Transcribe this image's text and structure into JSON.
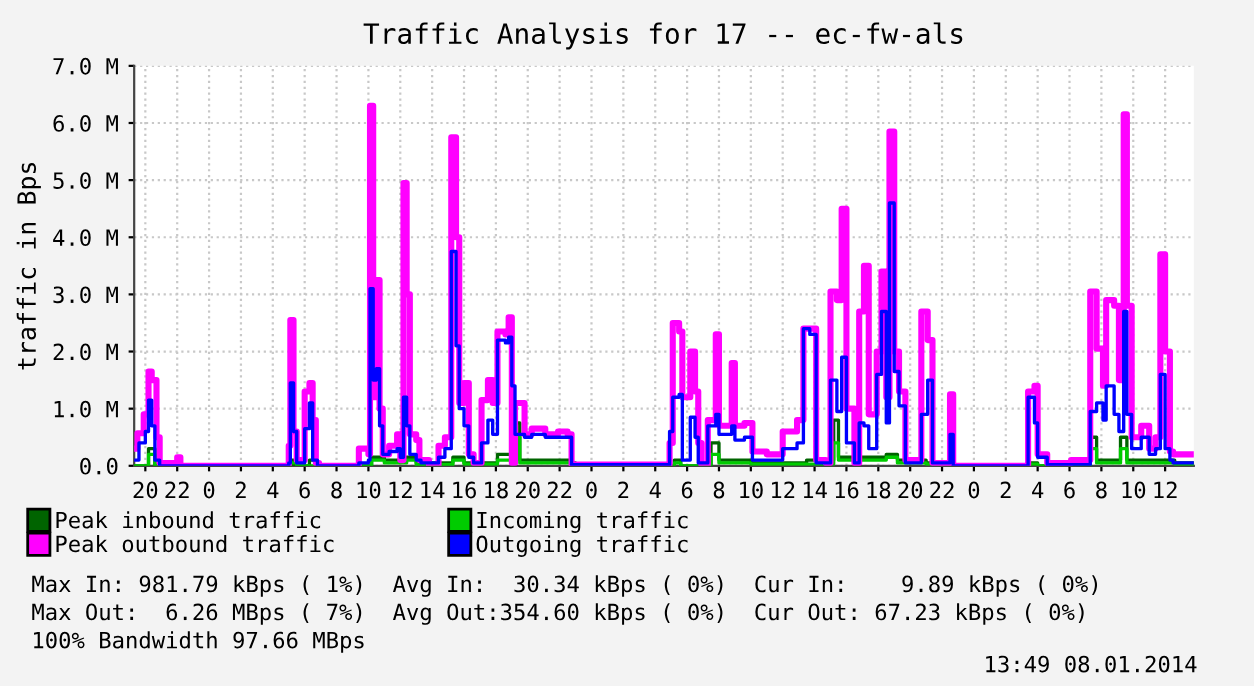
{
  "chart_data": {
    "type": "step",
    "title": "Traffic Analysis for 17 -- ec-fw-als",
    "ylabel": "traffic in Bps",
    "xlim": [
      "2014-01-05T19:18",
      "2014-01-08T13:48"
    ],
    "xticks": [
      {
        "value": "2014-01-05T20:00",
        "label": "20"
      },
      {
        "value": "2014-01-05T22:00",
        "label": "22"
      },
      {
        "value": "2014-01-06T00:00",
        "label": "0"
      },
      {
        "value": "2014-01-06T02:00",
        "label": "2"
      },
      {
        "value": "2014-01-06T04:00",
        "label": "4"
      },
      {
        "value": "2014-01-06T06:00",
        "label": "6"
      },
      {
        "value": "2014-01-06T08:00",
        "label": "8"
      },
      {
        "value": "2014-01-06T10:00",
        "label": "10"
      },
      {
        "value": "2014-01-06T12:00",
        "label": "12"
      },
      {
        "value": "2014-01-06T14:00",
        "label": "14"
      },
      {
        "value": "2014-01-06T16:00",
        "label": "16"
      },
      {
        "value": "2014-01-06T18:00",
        "label": "18"
      },
      {
        "value": "2014-01-06T20:00",
        "label": "20"
      },
      {
        "value": "2014-01-06T22:00",
        "label": "22"
      },
      {
        "value": "2014-01-07T00:00",
        "label": "0"
      },
      {
        "value": "2014-01-07T02:00",
        "label": "2"
      },
      {
        "value": "2014-01-07T04:00",
        "label": "4"
      },
      {
        "value": "2014-01-07T06:00",
        "label": "6"
      },
      {
        "value": "2014-01-07T08:00",
        "label": "8"
      },
      {
        "value": "2014-01-07T10:00",
        "label": "10"
      },
      {
        "value": "2014-01-07T12:00",
        "label": "12"
      },
      {
        "value": "2014-01-07T14:00",
        "label": "14"
      },
      {
        "value": "2014-01-07T16:00",
        "label": "16"
      },
      {
        "value": "2014-01-07T18:00",
        "label": "18"
      },
      {
        "value": "2014-01-07T20:00",
        "label": "20"
      },
      {
        "value": "2014-01-07T22:00",
        "label": "22"
      },
      {
        "value": "2014-01-08T00:00",
        "label": "0"
      },
      {
        "value": "2014-01-08T02:00",
        "label": "2"
      },
      {
        "value": "2014-01-08T04:00",
        "label": "4"
      },
      {
        "value": "2014-01-08T06:00",
        "label": "6"
      },
      {
        "value": "2014-01-08T08:00",
        "label": "8"
      },
      {
        "value": "2014-01-08T10:00",
        "label": "10"
      },
      {
        "value": "2014-01-08T12:00",
        "label": "12"
      }
    ],
    "ylim": [
      0,
      7
    ],
    "yticks": [
      {
        "value": 0,
        "label": "0.0"
      },
      {
        "value": 1,
        "label": "1.0 M"
      },
      {
        "value": 2,
        "label": "2.0 M"
      },
      {
        "value": 3,
        "label": "3.0 M"
      },
      {
        "value": 4,
        "label": "4.0 M"
      },
      {
        "value": 5,
        "label": "5.0 M"
      },
      {
        "value": 6,
        "label": "6.0 M"
      },
      {
        "value": 7,
        "label": "7.0 M"
      }
    ],
    "grid": true,
    "legend": "bottom",
    "series": [
      {
        "name": "Peak inbound traffic",
        "color": "#006400",
        "x": [
          "2014-01-05T19:18",
          "2014-01-05T20:12",
          "2014-01-05T20:36",
          "2014-01-06T05:06",
          "2014-01-06T05:18",
          "2014-01-06T06:18",
          "2014-01-06T06:42",
          "2014-01-06T10:12",
          "2014-01-06T11:00",
          "2014-01-06T12:24",
          "2014-01-06T13:00",
          "2014-01-06T15:18",
          "2014-01-06T16:00",
          "2014-01-06T18:06",
          "2014-01-06T19:12",
          "2014-01-06T19:30",
          "2014-01-06T22:45",
          "2014-01-06T23:00",
          "2014-01-07T05:12",
          "2014-01-07T05:36",
          "2014-01-07T07:30",
          "2014-01-07T08:00",
          "2014-01-07T10:00",
          "2014-01-07T13:30",
          "2014-01-07T15:12",
          "2014-01-07T15:30",
          "2014-01-07T18:30",
          "2014-01-07T19:12",
          "2014-01-07T21:00",
          "2014-01-07T22:42",
          "2014-01-08T03:30",
          "2014-01-08T04:00",
          "2014-01-08T07:18",
          "2014-01-08T07:42",
          "2014-01-08T09:12",
          "2014-01-08T09:36",
          "2014-01-08T11:42",
          "2014-01-08T12:36",
          "2014-01-08T13:48"
        ],
        "values": [
          0,
          0.3,
          0,
          0.1,
          0,
          0.1,
          0,
          0.15,
          0.1,
          0.15,
          0.05,
          0.15,
          0.05,
          0.2,
          0.75,
          0.1,
          0.05,
          0,
          0.1,
          0,
          0.4,
          0.1,
          0.05,
          0.1,
          0.8,
          0.15,
          0.2,
          0.1,
          0.05,
          0,
          0.05,
          0,
          0.5,
          0.1,
          0.5,
          0.1,
          0.1,
          0.05,
          0.05
        ]
      },
      {
        "name": "Incoming traffic",
        "color": "#00cc00",
        "x": [
          "2014-01-05T19:18",
          "2014-01-05T20:12",
          "2014-01-05T20:36",
          "2014-01-06T05:06",
          "2014-01-06T05:30",
          "2014-01-06T10:12",
          "2014-01-06T11:00",
          "2014-01-06T12:24",
          "2014-01-06T13:00",
          "2014-01-06T15:18",
          "2014-01-06T16:00",
          "2014-01-06T18:06",
          "2014-01-06T19:12",
          "2014-01-06T19:30",
          "2014-01-06T22:45",
          "2014-01-06T23:00",
          "2014-01-07T05:12",
          "2014-01-07T05:36",
          "2014-01-07T07:30",
          "2014-01-07T08:00",
          "2014-01-07T10:00",
          "2014-01-07T15:12",
          "2014-01-07T15:30",
          "2014-01-07T18:30",
          "2014-01-07T19:12",
          "2014-01-07T21:00",
          "2014-01-07T22:42",
          "2014-01-08T03:30",
          "2014-01-08T04:00",
          "2014-01-08T07:18",
          "2014-01-08T07:42",
          "2014-01-08T09:12",
          "2014-01-08T09:36",
          "2014-01-08T11:42",
          "2014-01-08T12:36",
          "2014-01-08T13:48"
        ],
        "values": [
          0,
          0.2,
          0,
          0.05,
          0,
          0.1,
          0.05,
          0.1,
          0.02,
          0.1,
          0.03,
          0.1,
          0.5,
          0.05,
          0.03,
          0,
          0.05,
          0,
          0.2,
          0.05,
          0.03,
          0.4,
          0.1,
          0.15,
          0.05,
          0.03,
          0,
          0.03,
          0,
          0.3,
          0.05,
          0.3,
          0.05,
          0.05,
          0.03,
          0.03
        ]
      },
      {
        "name": "Peak outbound traffic",
        "color": "#ff00ff",
        "x": [
          "2014-01-05T19:18",
          "2014-01-05T19:30",
          "2014-01-05T19:54",
          "2014-01-05T20:12",
          "2014-01-05T20:24",
          "2014-01-05T20:42",
          "2014-01-05T20:54",
          "2014-01-05T22:00",
          "2014-01-05T22:12",
          "2014-01-06T05:00",
          "2014-01-06T05:06",
          "2014-01-06T05:18",
          "2014-01-06T05:30",
          "2014-01-06T06:00",
          "2014-01-06T06:18",
          "2014-01-06T06:30",
          "2014-01-06T06:42",
          "2014-01-06T06:54",
          "2014-01-06T09:24",
          "2014-01-06T10:00",
          "2014-01-06T10:06",
          "2014-01-06T10:18",
          "2014-01-06T10:30",
          "2014-01-06T10:42",
          "2014-01-06T10:54",
          "2014-01-06T11:18",
          "2014-01-06T11:48",
          "2014-01-06T12:00",
          "2014-01-06T12:12",
          "2014-01-06T12:24",
          "2014-01-06T12:36",
          "2014-01-06T13:00",
          "2014-01-06T13:12",
          "2014-01-06T13:48",
          "2014-01-06T14:24",
          "2014-01-06T14:48",
          "2014-01-06T15:12",
          "2014-01-06T15:30",
          "2014-01-06T15:42",
          "2014-01-06T16:00",
          "2014-01-06T16:18",
          "2014-01-06T16:36",
          "2014-01-06T17:06",
          "2014-01-06T17:30",
          "2014-01-06T17:48",
          "2014-01-06T18:06",
          "2014-01-06T18:36",
          "2014-01-06T18:48",
          "2014-01-06T19:00",
          "2014-01-06T19:12",
          "2014-01-06T19:48",
          "2014-01-06T20:15",
          "2014-01-06T21:06",
          "2014-01-06T21:54",
          "2014-01-06T22:30",
          "2014-01-06T22:45",
          "2014-01-07T04:54",
          "2014-01-07T05:06",
          "2014-01-07T05:30",
          "2014-01-07T05:42",
          "2014-01-07T06:12",
          "2014-01-07T06:30",
          "2014-01-07T06:42",
          "2014-01-07T06:54",
          "2014-01-07T07:18",
          "2014-01-07T07:48",
          "2014-01-07T08:00",
          "2014-01-07T08:48",
          "2014-01-07T09:00",
          "2014-01-07T09:36",
          "2014-01-07T10:06",
          "2014-01-07T11:00",
          "2014-01-07T12:00",
          "2014-01-07T12:54",
          "2014-01-07T13:18",
          "2014-01-07T13:42",
          "2014-01-07T14:06",
          "2014-01-07T14:42",
          "2014-01-07T15:00",
          "2014-01-07T15:24",
          "2014-01-07T15:42",
          "2014-01-07T16:00",
          "2014-01-07T16:30",
          "2014-01-07T16:48",
          "2014-01-07T17:06",
          "2014-01-07T17:24",
          "2014-01-07T17:54",
          "2014-01-07T18:12",
          "2014-01-07T18:30",
          "2014-01-07T18:42",
          "2014-01-07T19:00",
          "2014-01-07T19:18",
          "2014-01-07T19:42",
          "2014-01-07T20:42",
          "2014-01-07T21:06",
          "2014-01-07T21:24",
          "2014-01-07T22:30",
          "2014-01-07T22:42",
          "2014-01-08T03:24",
          "2014-01-08T03:48",
          "2014-01-08T04:00",
          "2014-01-08T04:36",
          "2014-01-08T06:06",
          "2014-01-08T07:18",
          "2014-01-08T07:42",
          "2014-01-08T08:06",
          "2014-01-08T08:18",
          "2014-01-08T08:48",
          "2014-01-08T09:06",
          "2014-01-08T09:24",
          "2014-01-08T09:36",
          "2014-01-08T09:54",
          "2014-01-08T10:30",
          "2014-01-08T11:00",
          "2014-01-08T11:24",
          "2014-01-08T11:42",
          "2014-01-08T12:00",
          "2014-01-08T12:18",
          "2014-01-08T12:30",
          "2014-01-08T13:48"
        ],
        "values": [
          0.3,
          0.57,
          0.9,
          1.65,
          1.5,
          0.5,
          0.05,
          0.15,
          0,
          0.35,
          2.55,
          0.6,
          0.1,
          1.3,
          1.45,
          0.8,
          0.05,
          0,
          0.3,
          0.2,
          6.3,
          1.2,
          3.25,
          1.0,
          0.2,
          0.35,
          0.55,
          0.1,
          4.95,
          3.0,
          0.55,
          0.45,
          0.1,
          0,
          0.35,
          0.5,
          5.75,
          4.0,
          1.1,
          1.45,
          0.2,
          0.05,
          1.15,
          1.5,
          1.1,
          2.35,
          2.3,
          2.6,
          0.05,
          1.1,
          0.55,
          0.65,
          0.55,
          0.6,
          0.55,
          0.02,
          0.4,
          2.5,
          2.35,
          1.2,
          2.0,
          1.3,
          0.4,
          0.02,
          0.8,
          2.3,
          0.7,
          1.8,
          0.7,
          0.75,
          0.25,
          0.2,
          0.6,
          0.8,
          2.4,
          2.4,
          0.1,
          0.05,
          3.05,
          2.9,
          4.5,
          1.0,
          0.05,
          2.7,
          3.5,
          0.9,
          2.0,
          3.4,
          1.2,
          5.85,
          2.0,
          1.3,
          0.1,
          2.7,
          2.2,
          0.05,
          1.25,
          0,
          1.3,
          1.4,
          0.2,
          0.05,
          0.1,
          3.05,
          2.05,
          1.4,
          2.9,
          2.8,
          1.5,
          6.15,
          2.8,
          0.5,
          0.7,
          0.3,
          0.5,
          3.7,
          2.0,
          0.25,
          0.2,
          0.2
        ]
      },
      {
        "name": "Outgoing traffic",
        "color": "#0000ff",
        "x": [
          "2014-01-05T19:18",
          "2014-01-05T19:36",
          "2014-01-05T20:00",
          "2014-01-05T20:12",
          "2014-01-05T20:24",
          "2014-01-05T20:36",
          "2014-01-05T20:54",
          "2014-01-06T05:00",
          "2014-01-06T05:06",
          "2014-01-06T05:18",
          "2014-01-06T05:30",
          "2014-01-06T06:00",
          "2014-01-06T06:18",
          "2014-01-06T06:30",
          "2014-01-06T06:48",
          "2014-01-06T09:24",
          "2014-01-06T10:00",
          "2014-01-06T10:06",
          "2014-01-06T10:18",
          "2014-01-06T10:30",
          "2014-01-06T10:42",
          "2014-01-06T10:54",
          "2014-01-06T11:18",
          "2014-01-06T11:48",
          "2014-01-06T12:00",
          "2014-01-06T12:12",
          "2014-01-06T12:24",
          "2014-01-06T12:36",
          "2014-01-06T13:00",
          "2014-01-06T13:18",
          "2014-01-06T14:24",
          "2014-01-06T14:48",
          "2014-01-06T15:12",
          "2014-01-06T15:30",
          "2014-01-06T15:42",
          "2014-01-06T16:00",
          "2014-01-06T16:18",
          "2014-01-06T16:36",
          "2014-01-06T17:06",
          "2014-01-06T17:30",
          "2014-01-06T17:48",
          "2014-01-06T18:06",
          "2014-01-06T18:36",
          "2014-01-06T18:48",
          "2014-01-06T19:00",
          "2014-01-06T19:12",
          "2014-01-06T19:48",
          "2014-01-06T20:15",
          "2014-01-06T21:06",
          "2014-01-06T22:00",
          "2014-01-06T22:30",
          "2014-01-06T22:45",
          "2014-01-07T04:54",
          "2014-01-07T05:06",
          "2014-01-07T05:30",
          "2014-01-07T05:42",
          "2014-01-07T06:12",
          "2014-01-07T06:30",
          "2014-01-07T06:42",
          "2014-01-07T07:18",
          "2014-01-07T07:48",
          "2014-01-07T08:00",
          "2014-01-07T08:48",
          "2014-01-07T09:00",
          "2014-01-07T09:36",
          "2014-01-07T10:06",
          "2014-01-07T11:00",
          "2014-01-07T12:00",
          "2014-01-07T12:54",
          "2014-01-07T13:18",
          "2014-01-07T13:42",
          "2014-01-07T14:06",
          "2014-01-07T15:00",
          "2014-01-07T15:24",
          "2014-01-07T15:42",
          "2014-01-07T16:00",
          "2014-01-07T16:30",
          "2014-01-07T16:48",
          "2014-01-07T17:06",
          "2014-01-07T17:24",
          "2014-01-07T17:54",
          "2014-01-07T18:12",
          "2014-01-07T18:30",
          "2014-01-07T18:42",
          "2014-01-07T19:00",
          "2014-01-07T19:18",
          "2014-01-07T19:42",
          "2014-01-07T20:42",
          "2014-01-07T21:06",
          "2014-01-07T21:24",
          "2014-01-07T22:30",
          "2014-01-07T22:42",
          "2014-01-08T03:24",
          "2014-01-08T03:48",
          "2014-01-08T04:00",
          "2014-01-08T04:36",
          "2014-01-08T07:18",
          "2014-01-08T07:42",
          "2014-01-08T08:06",
          "2014-01-08T08:18",
          "2014-01-08T08:48",
          "2014-01-08T09:06",
          "2014-01-08T09:24",
          "2014-01-08T09:36",
          "2014-01-08T09:54",
          "2014-01-08T10:30",
          "2014-01-08T11:00",
          "2014-01-08T11:24",
          "2014-01-08T11:42",
          "2014-01-08T12:00",
          "2014-01-08T12:18",
          "2014-01-08T12:30",
          "2014-01-08T13:48"
        ],
        "values": [
          0.1,
          0.4,
          0.6,
          1.15,
          0.7,
          0.1,
          0,
          0.05,
          1.45,
          0.6,
          0.05,
          0.65,
          1.1,
          0.1,
          0,
          0.05,
          0.1,
          3.1,
          1.5,
          1.7,
          0.7,
          0.2,
          0.25,
          0.3,
          0.15,
          1.2,
          0.7,
          0.2,
          0.1,
          0.05,
          0.15,
          0.3,
          3.75,
          2.1,
          1.0,
          0.7,
          0.15,
          0.05,
          0.4,
          0.8,
          0.55,
          2.2,
          2.15,
          2.25,
          1.4,
          0.55,
          0.5,
          0.55,
          0.5,
          0.5,
          0.5,
          0.02,
          0.6,
          1.2,
          1.25,
          0.1,
          0.85,
          0.5,
          0.05,
          0.7,
          0.9,
          0.55,
          0.7,
          0.45,
          0.5,
          0.1,
          0.1,
          0.3,
          0.4,
          2.4,
          2.3,
          0.05,
          1.5,
          0.95,
          1.9,
          0.4,
          0.05,
          0.75,
          0.7,
          0.3,
          1.6,
          2.7,
          0.75,
          4.6,
          1.65,
          1.05,
          0.05,
          0.9,
          1.5,
          0.05,
          0.55,
          0,
          1.2,
          0.75,
          0.15,
          0.02,
          0.95,
          1.1,
          0.8,
          1.4,
          0.9,
          0.6,
          2.7,
          0.9,
          0.3,
          0.5,
          0.2,
          0.3,
          1.6,
          0.3,
          0.1,
          0.05,
          0.05
        ]
      }
    ],
    "annotations": [
      "Max In: 981.79 kBps ( 1%)  Avg In:  30.34 kBps ( 0%)  Cur In:    9.89 kBps ( 0%)",
      "Max Out:  6.26 MBps ( 7%)  Avg Out:354.60 kBps ( 0%)  Cur Out: 67.23 kBps ( 0%)",
      "100% Bandwidth 97.66 MBps",
      "13:49 08.01.2014"
    ]
  }
}
